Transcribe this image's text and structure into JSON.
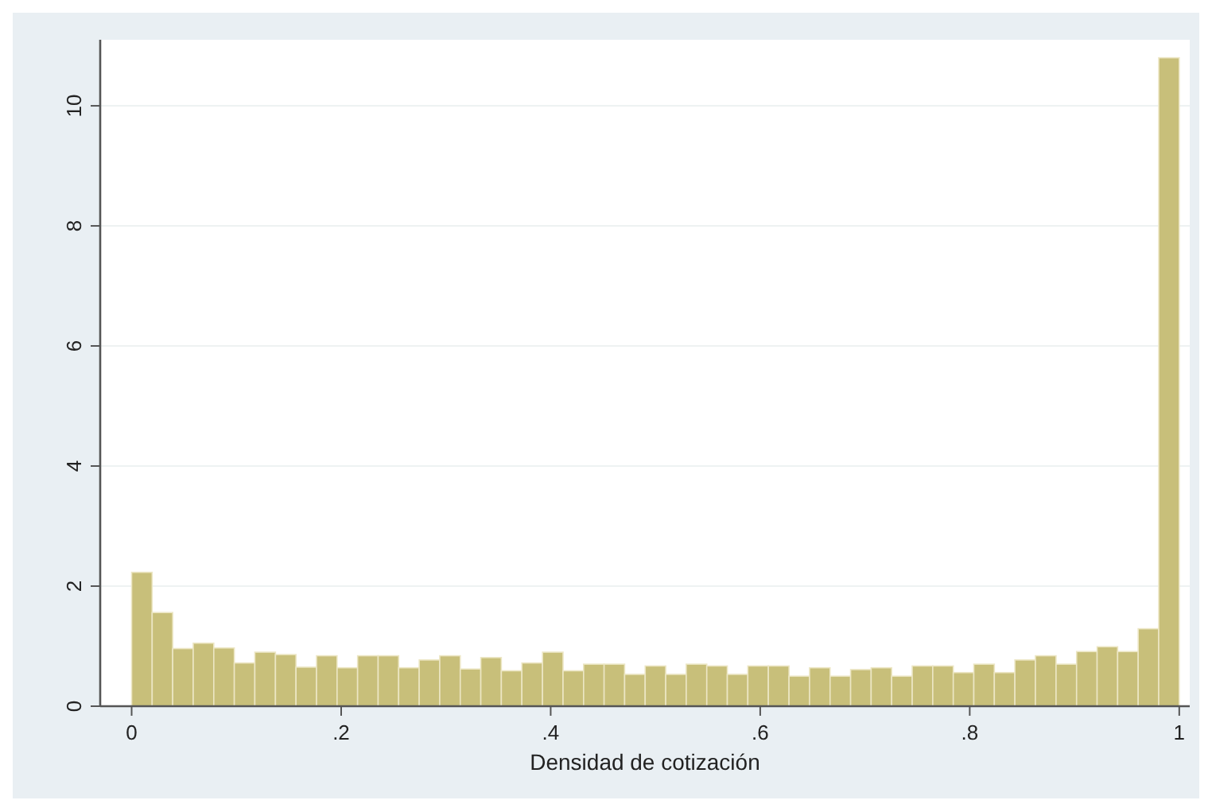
{
  "chart_data": {
    "type": "histogram",
    "xlabel": "Densidad de cotización",
    "bins": [
      0,
      0.0196,
      0.0392,
      0.0588,
      0.0784,
      0.098,
      0.1176,
      0.1373,
      0.1569,
      0.1765,
      0.1961,
      0.2157,
      0.2353,
      0.2549,
      0.2745,
      0.2941,
      0.3137,
      0.3333,
      0.3529,
      0.3725,
      0.3922,
      0.4118,
      0.4314,
      0.451,
      0.4706,
      0.4902,
      0.5098,
      0.5294,
      0.549,
      0.5686,
      0.5882,
      0.6078,
      0.6275,
      0.6471,
      0.6667,
      0.6863,
      0.7059,
      0.7255,
      0.7451,
      0.7647,
      0.7843,
      0.8039,
      0.8235,
      0.8431,
      0.8627,
      0.8824,
      0.902,
      0.9216,
      0.9412,
      0.9608,
      0.9804,
      1
    ],
    "values": [
      2.23,
      1.56,
      0.96,
      1.05,
      0.97,
      0.72,
      0.9,
      0.86,
      0.65,
      0.84,
      0.64,
      0.84,
      0.84,
      0.64,
      0.77,
      0.84,
      0.62,
      0.81,
      0.59,
      0.72,
      0.9,
      0.59,
      0.7,
      0.7,
      0.53,
      0.67,
      0.53,
      0.7,
      0.67,
      0.53,
      0.67,
      0.67,
      0.5,
      0.64,
      0.5,
      0.61,
      0.64,
      0.5,
      0.67,
      0.67,
      0.56,
      0.7,
      0.56,
      0.77,
      0.84,
      0.7,
      0.91,
      0.99,
      0.91,
      1.29,
      10.8
    ],
    "color": "#c8bf7a",
    "xlim": [
      -0.03,
      1.01
    ],
    "ylim": [
      0,
      11.1
    ],
    "xticks": [
      0,
      {
        "value": 0.2,
        "label": ".2"
      },
      {
        "value": 0.4,
        "label": ".4"
      },
      {
        "value": 0.6,
        "label": ".6"
      },
      {
        "value": 0.8,
        "label": ".8"
      },
      1
    ],
    "yticks": [
      0,
      2,
      4,
      6,
      8,
      10
    ],
    "grid": "y"
  }
}
